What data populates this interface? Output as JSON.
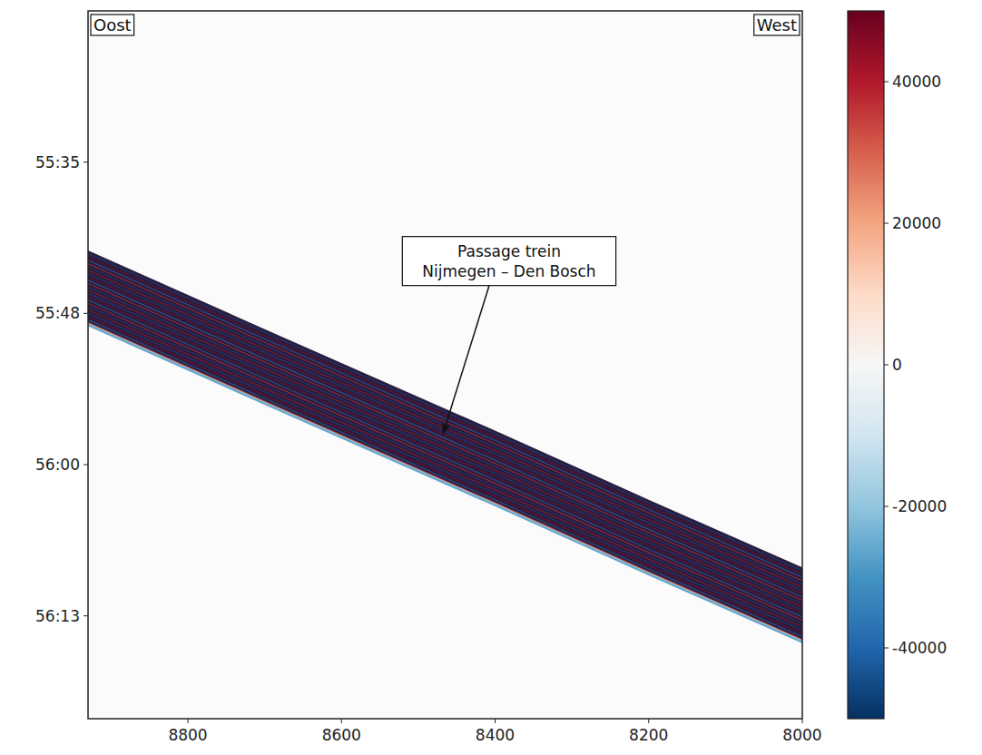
{
  "chart_data": {
    "type": "waterfall",
    "corner_labels": {
      "left": "Oost",
      "right": "West"
    },
    "annotation": {
      "lines": [
        "Passage trein",
        "Nijmegen – Den Bosch"
      ],
      "x": 8468,
      "y": 3358
    },
    "xlim": [
      8930,
      8000
    ],
    "xticks": [
      8800,
      8600,
      8400,
      8200,
      8000
    ],
    "ylim": [
      3323,
      3381.5
    ],
    "yticks": [
      {
        "value": 3335.5,
        "label": "55:35"
      },
      {
        "value": 3348,
        "label": "55:48"
      },
      {
        "value": 3360.5,
        "label": "56:00"
      },
      {
        "value": 3373,
        "label": "56:13"
      }
    ],
    "band": {
      "x": [
        8930,
        8700,
        8425,
        8410,
        8200,
        8000
      ],
      "t_start": [
        3342.8,
        3349.3,
        3357.0,
        3357.4,
        3363.4,
        3369.0
      ],
      "t_end": [
        3348.8,
        3355.3,
        3363.0,
        3363.4,
        3369.4,
        3375.0
      ]
    },
    "colorbar": {
      "range": [
        -50000,
        50000
      ],
      "ticks": [
        -40000,
        -20000,
        0,
        20000,
        40000
      ]
    }
  }
}
